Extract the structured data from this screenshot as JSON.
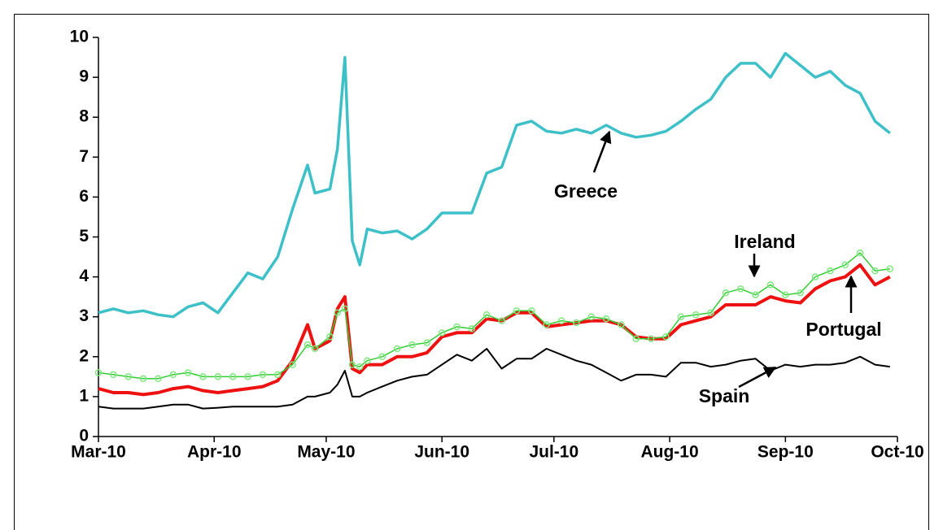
{
  "chart_data": {
    "type": "line",
    "x": [
      0,
      4,
      8,
      12,
      16,
      20,
      24,
      28,
      32,
      36,
      40,
      44,
      48,
      52,
      56,
      58,
      62,
      64,
      66,
      68,
      70,
      72,
      76,
      80,
      84,
      88,
      92,
      96,
      100,
      104,
      108,
      112,
      116,
      120,
      124,
      128,
      132,
      136,
      140,
      144,
      148,
      152,
      156,
      160,
      164,
      168,
      172,
      176,
      180,
      184,
      188,
      192,
      196,
      200,
      204,
      208,
      212
    ],
    "xlim": [
      0,
      214
    ],
    "xticks": [
      {
        "value": 0,
        "label": "Mar-10"
      },
      {
        "value": 31,
        "label": "Apr-10"
      },
      {
        "value": 61,
        "label": "May-10"
      },
      {
        "value": 92,
        "label": "Jun-10"
      },
      {
        "value": 122,
        "label": "Jul-10"
      },
      {
        "value": 153,
        "label": "Aug-10"
      },
      {
        "value": 184,
        "label": "Sep-10"
      },
      {
        "value": 214,
        "label": "Oct-10"
      }
    ],
    "ylim": [
      0,
      10
    ],
    "yticks": [
      0,
      1,
      2,
      3,
      4,
      5,
      6,
      7,
      8,
      9,
      10
    ],
    "series": [
      {
        "name": "Greece",
        "color": "#3ec0c8",
        "values": [
          3.1,
          3.2,
          3.1,
          3.15,
          3.05,
          3.0,
          3.25,
          3.35,
          3.1,
          3.6,
          4.1,
          3.95,
          4.5,
          5.7,
          6.8,
          6.1,
          6.2,
          7.2,
          9.5,
          4.9,
          4.3,
          5.2,
          5.1,
          5.15,
          4.95,
          5.2,
          5.6,
          5.6,
          5.6,
          6.6,
          6.75,
          7.8,
          7.9,
          7.65,
          7.6,
          7.7,
          7.6,
          7.8,
          7.6,
          7.5,
          7.55,
          7.65,
          7.9,
          8.2,
          8.45,
          9.0,
          9.35,
          9.35,
          9.0,
          9.6,
          9.3,
          9.0,
          9.15,
          8.8,
          8.6,
          7.9,
          7.6
        ]
      },
      {
        "name": "Portugal",
        "color": "#ee1111",
        "values": [
          1.2,
          1.1,
          1.1,
          1.05,
          1.1,
          1.2,
          1.25,
          1.15,
          1.1,
          1.15,
          1.2,
          1.25,
          1.4,
          1.9,
          2.8,
          2.2,
          2.4,
          3.2,
          3.5,
          1.7,
          1.6,
          1.8,
          1.8,
          2.0,
          2.0,
          2.1,
          2.5,
          2.6,
          2.6,
          2.95,
          2.9,
          3.1,
          3.1,
          2.75,
          2.8,
          2.85,
          2.9,
          2.9,
          2.8,
          2.5,
          2.45,
          2.45,
          2.8,
          2.9,
          3.0,
          3.3,
          3.3,
          3.3,
          3.5,
          3.4,
          3.35,
          3.7,
          3.9,
          4.0,
          4.3,
          3.8,
          4.0
        ]
      },
      {
        "name": "Ireland",
        "color": "#33cc33",
        "values": [
          1.6,
          1.55,
          1.5,
          1.45,
          1.45,
          1.55,
          1.6,
          1.5,
          1.5,
          1.5,
          1.5,
          1.55,
          1.55,
          1.8,
          2.3,
          2.2,
          2.5,
          3.1,
          3.2,
          1.8,
          1.75,
          1.9,
          2.0,
          2.2,
          2.3,
          2.35,
          2.6,
          2.75,
          2.7,
          3.05,
          2.9,
          3.15,
          3.15,
          2.8,
          2.9,
          2.85,
          3.0,
          2.95,
          2.8,
          2.45,
          2.45,
          2.5,
          3.0,
          3.05,
          3.1,
          3.6,
          3.7,
          3.55,
          3.8,
          3.55,
          3.6,
          4.0,
          4.15,
          4.3,
          4.6,
          4.15,
          4.2
        ]
      },
      {
        "name": "Spain",
        "color": "#000000",
        "values": [
          0.75,
          0.7,
          0.7,
          0.7,
          0.75,
          0.8,
          0.8,
          0.7,
          0.72,
          0.75,
          0.75,
          0.75,
          0.75,
          0.8,
          1.0,
          1.0,
          1.1,
          1.3,
          1.65,
          1.0,
          1.0,
          1.1,
          1.25,
          1.4,
          1.5,
          1.55,
          1.8,
          2.05,
          1.9,
          2.2,
          1.7,
          1.95,
          1.95,
          2.2,
          2.05,
          1.9,
          1.8,
          1.6,
          1.4,
          1.55,
          1.55,
          1.5,
          1.85,
          1.85,
          1.75,
          1.8,
          1.9,
          1.95,
          1.65,
          1.8,
          1.75,
          1.8,
          1.8,
          1.85,
          2.0,
          1.8,
          1.75
        ]
      }
    ],
    "annotations": [
      {
        "text": "Greece"
      },
      {
        "text": "Ireland"
      },
      {
        "text": "Portugal"
      },
      {
        "text": "Spain"
      }
    ]
  }
}
